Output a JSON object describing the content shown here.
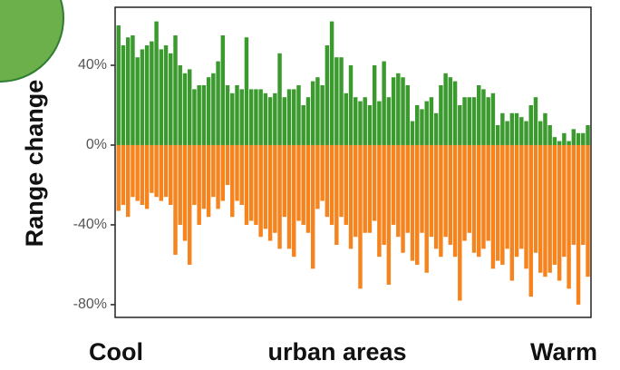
{
  "chart_data": {
    "type": "diverging-bar",
    "ylabel": "Range change",
    "xlabel": "urban areas",
    "x_annotations": [
      "Cool",
      "Warm"
    ],
    "categories": [
      null,
      null,
      null,
      null,
      null,
      null,
      null,
      null,
      null,
      null,
      null,
      null,
      null,
      null,
      null,
      null,
      null,
      null,
      null,
      null,
      null,
      null,
      null,
      null,
      null,
      null,
      null,
      null,
      null,
      null,
      null,
      null,
      null,
      null,
      null,
      null,
      null,
      null,
      null,
      null,
      null,
      null,
      null,
      null,
      null,
      null,
      null,
      null,
      null,
      null,
      null,
      null,
      null,
      null,
      null,
      null,
      null,
      null,
      null,
      null,
      null,
      null,
      null,
      null,
      null,
      null,
      null,
      null,
      null,
      null,
      null,
      null,
      null,
      null,
      null,
      null,
      null,
      null,
      null,
      null,
      null,
      null,
      null,
      null,
      null,
      null,
      null,
      null,
      null,
      null,
      null,
      null,
      null,
      null,
      null,
      null,
      null,
      null,
      null,
      null
    ],
    "series": [
      {
        "color": "#3a9a2e",
        "values": [
          60,
          50,
          54,
          55,
          44,
          48,
          50,
          52,
          62,
          48,
          50,
          46,
          55,
          40,
          36,
          38,
          28,
          30,
          30,
          34,
          36,
          42,
          55,
          30,
          26,
          30,
          28,
          54,
          28,
          28,
          28,
          26,
          24,
          26,
          46,
          24,
          28,
          28,
          30,
          20,
          24,
          32,
          34,
          30,
          50,
          62,
          44,
          44,
          26,
          40,
          24,
          22,
          24,
          20,
          40,
          22,
          42,
          24,
          34,
          36,
          34,
          30,
          12,
          20,
          18,
          22,
          24,
          16,
          30,
          36,
          34,
          32,
          20,
          24,
          24,
          24,
          30,
          28,
          24,
          26,
          10,
          16,
          12,
          16,
          16,
          14,
          12,
          20,
          24,
          12,
          16,
          10,
          4,
          2,
          6,
          2,
          8,
          6,
          6,
          10
        ]
      },
      {
        "color": "#f5841f",
        "values": [
          -33,
          -30,
          -36,
          -26,
          -28,
          -30,
          -32,
          -24,
          -26,
          -28,
          -26,
          -30,
          -55,
          -40,
          -48,
          -60,
          -30,
          -40,
          -32,
          -36,
          -26,
          -32,
          -28,
          -20,
          -36,
          -28,
          -30,
          -40,
          -38,
          -40,
          -46,
          -42,
          -48,
          -44,
          -52,
          -36,
          -52,
          -56,
          -38,
          -40,
          -44,
          -62,
          -32,
          -28,
          -36,
          -40,
          -50,
          -36,
          -40,
          -52,
          -46,
          -72,
          -44,
          -44,
          -38,
          -56,
          -50,
          -70,
          -40,
          -46,
          -54,
          -44,
          -58,
          -60,
          -44,
          -64,
          -46,
          -52,
          -56,
          -46,
          -50,
          -56,
          -78,
          -48,
          -44,
          -54,
          -56,
          -52,
          -48,
          -62,
          -58,
          -60,
          -52,
          -68,
          -56,
          -52,
          -62,
          -76,
          -54,
          -64,
          -66,
          -64,
          -60,
          -68,
          -56,
          -72,
          -50,
          -80,
          -50,
          -66
        ]
      }
    ],
    "ylim": [
      -86.4,
      69.1
    ],
    "yticks": [
      {
        "value": 40,
        "label": "40%"
      },
      {
        "value": 0,
        "label": "0%"
      },
      {
        "value": -40,
        "label": "-40%"
      },
      {
        "value": -80,
        "label": "-80%"
      }
    ]
  }
}
